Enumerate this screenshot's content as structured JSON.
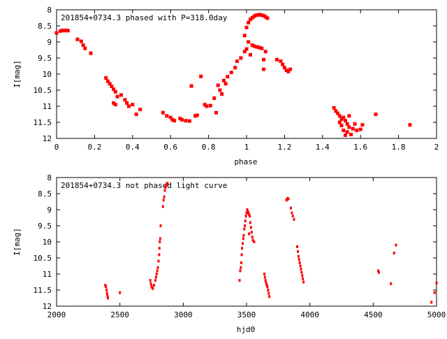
{
  "chart_data": [
    {
      "type": "scatter",
      "title": "201854+0734.3 phased with P=318.0day",
      "xlabel": "phase",
      "ylabel": "I[mag]",
      "xlim": [
        0,
        2
      ],
      "ylim": [
        12,
        8
      ],
      "y_inverted": true,
      "grid": false,
      "xticks": [
        "0",
        "0.2",
        "0.4",
        "0.6",
        "0.8",
        "1",
        "1.2",
        "1.4",
        "1.6",
        "1.8",
        "2"
      ],
      "yticks": [
        "8",
        "8.5",
        "9",
        "9.5",
        "10",
        "10.5",
        "11",
        "11.5",
        "12"
      ],
      "marker_color": "#ff0000",
      "points": [
        [
          0.0,
          8.72
        ],
        [
          0.02,
          8.66
        ],
        [
          0.03,
          8.64
        ],
        [
          0.04,
          8.65
        ],
        [
          0.05,
          8.64
        ],
        [
          0.06,
          8.65
        ],
        [
          0.11,
          8.92
        ],
        [
          0.13,
          8.98
        ],
        [
          0.14,
          9.1
        ],
        [
          0.15,
          9.2
        ],
        [
          0.18,
          9.35
        ],
        [
          0.26,
          10.12
        ],
        [
          0.27,
          10.22
        ],
        [
          0.28,
          10.3
        ],
        [
          0.29,
          10.38
        ],
        [
          0.3,
          10.47
        ],
        [
          0.31,
          10.55
        ],
        [
          0.32,
          10.7
        ],
        [
          0.3,
          10.9
        ],
        [
          0.31,
          10.95
        ],
        [
          0.34,
          10.65
        ],
        [
          0.36,
          10.8
        ],
        [
          0.37,
          10.9
        ],
        [
          0.38,
          11.0
        ],
        [
          0.4,
          10.95
        ],
        [
          0.42,
          11.25
        ],
        [
          0.44,
          11.1
        ],
        [
          0.56,
          11.2
        ],
        [
          0.58,
          11.3
        ],
        [
          0.6,
          11.35
        ],
        [
          0.61,
          11.42
        ],
        [
          0.62,
          11.45
        ],
        [
          0.65,
          11.38
        ],
        [
          0.66,
          11.42
        ],
        [
          0.68,
          11.45
        ],
        [
          0.7,
          11.46
        ],
        [
          0.71,
          10.37
        ],
        [
          0.73,
          11.3
        ],
        [
          0.74,
          11.28
        ],
        [
          0.76,
          10.07
        ],
        [
          0.78,
          10.95
        ],
        [
          0.79,
          11.0
        ],
        [
          0.81,
          10.98
        ],
        [
          0.83,
          10.75
        ],
        [
          0.84,
          11.2
        ],
        [
          0.85,
          10.35
        ],
        [
          0.86,
          10.5
        ],
        [
          0.87,
          10.62
        ],
        [
          0.88,
          10.2
        ],
        [
          0.89,
          10.3
        ],
        [
          0.9,
          10.08
        ],
        [
          0.92,
          9.95
        ],
        [
          0.94,
          9.8
        ],
        [
          0.95,
          9.6
        ],
        [
          0.97,
          9.5
        ],
        [
          0.99,
          9.3
        ],
        [
          1.0,
          9.22
        ],
        [
          1.01,
          9.0
        ],
        [
          1.02,
          9.4
        ],
        [
          1.03,
          9.1
        ],
        [
          1.04,
          9.13
        ],
        [
          1.05,
          9.15
        ],
        [
          1.06,
          9.16
        ],
        [
          1.07,
          9.18
        ],
        [
          1.08,
          9.2
        ],
        [
          1.09,
          9.85
        ],
        [
          1.09,
          9.55
        ],
        [
          1.1,
          9.3
        ],
        [
          0.99,
          8.8
        ],
        [
          1.0,
          8.55
        ],
        [
          1.01,
          8.4
        ],
        [
          1.02,
          8.3
        ],
        [
          1.03,
          8.25
        ],
        [
          1.04,
          8.2
        ],
        [
          1.05,
          8.17
        ],
        [
          1.06,
          8.16
        ],
        [
          1.07,
          8.15
        ],
        [
          1.08,
          8.17
        ],
        [
          1.09,
          8.18
        ],
        [
          1.1,
          8.22
        ],
        [
          1.11,
          8.26
        ],
        [
          1.16,
          9.55
        ],
        [
          1.18,
          9.6
        ],
        [
          1.19,
          9.7
        ],
        [
          1.2,
          9.8
        ],
        [
          1.21,
          9.88
        ],
        [
          1.22,
          9.92
        ],
        [
          1.23,
          9.85
        ],
        [
          1.46,
          11.05
        ],
        [
          1.47,
          11.15
        ],
        [
          1.48,
          11.22
        ],
        [
          1.49,
          11.3
        ],
        [
          1.49,
          11.5
        ],
        [
          1.5,
          11.4
        ],
        [
          1.5,
          11.6
        ],
        [
          1.51,
          11.35
        ],
        [
          1.51,
          11.75
        ],
        [
          1.52,
          11.45
        ],
        [
          1.52,
          11.9
        ],
        [
          1.53,
          11.55
        ],
        [
          1.53,
          11.8
        ],
        [
          1.54,
          11.3
        ],
        [
          1.54,
          11.65
        ],
        [
          1.55,
          11.88
        ],
        [
          1.56,
          11.7
        ],
        [
          1.57,
          11.55
        ],
        [
          1.58,
          11.75
        ],
        [
          1.6,
          11.72
        ],
        [
          1.61,
          11.58
        ],
        [
          1.68,
          11.25
        ],
        [
          1.86,
          11.58
        ]
      ]
    },
    {
      "type": "scatter",
      "title": "201854+0734.3 not phased light curve",
      "xlabel": "hjd0",
      "ylabel": "I[mag]",
      "xlim": [
        2000,
        5000
      ],
      "ylim": [
        12,
        8
      ],
      "y_inverted": true,
      "grid": false,
      "xticks": [
        "2000",
        "2500",
        "3000",
        "3500",
        "4000",
        "4500",
        "5000"
      ],
      "yticks": [
        "8",
        "8.5",
        "9",
        "9.5",
        "10",
        "10.5",
        "11",
        "11.5",
        "12"
      ],
      "marker_color": "#ff0000",
      "points": [
        [
          2385,
          11.35
        ],
        [
          2390,
          11.4
        ],
        [
          2395,
          11.5
        ],
        [
          2398,
          11.6
        ],
        [
          2402,
          11.68
        ],
        [
          2405,
          11.75
        ],
        [
          2500,
          11.58
        ],
        [
          2740,
          11.2
        ],
        [
          2745,
          11.3
        ],
        [
          2750,
          11.38
        ],
        [
          2755,
          11.42
        ],
        [
          2760,
          11.45
        ],
        [
          2770,
          11.35
        ],
        [
          2780,
          11.2
        ],
        [
          2785,
          11.1
        ],
        [
          2790,
          11.0
        ],
        [
          2795,
          10.9
        ],
        [
          2800,
          10.8
        ],
        [
          2805,
          10.6
        ],
        [
          2810,
          10.4
        ],
        [
          2812,
          10.2
        ],
        [
          2815,
          10.0
        ],
        [
          2818,
          9.9
        ],
        [
          2822,
          9.5
        ],
        [
          2840,
          8.9
        ],
        [
          2845,
          8.7
        ],
        [
          2850,
          8.6
        ],
        [
          2855,
          8.4
        ],
        [
          2860,
          8.3
        ],
        [
          2865,
          8.25
        ],
        [
          2870,
          8.2
        ],
        [
          2875,
          8.18
        ],
        [
          3445,
          11.2
        ],
        [
          3450,
          10.9
        ],
        [
          3455,
          10.8
        ],
        [
          3458,
          10.65
        ],
        [
          3462,
          10.4
        ],
        [
          3465,
          10.2
        ],
        [
          3470,
          10.05
        ],
        [
          3474,
          9.9
        ],
        [
          3478,
          9.8
        ],
        [
          3482,
          9.6
        ],
        [
          3486,
          9.5
        ],
        [
          3490,
          9.35
        ],
        [
          3495,
          9.2
        ],
        [
          3500,
          9.1
        ],
        [
          3505,
          9.0
        ],
        [
          3510,
          9.05
        ],
        [
          3515,
          9.1
        ],
        [
          3520,
          9.15
        ],
        [
          3525,
          9.2
        ],
        [
          3530,
          9.4
        ],
        [
          3535,
          9.55
        ],
        [
          3540,
          9.7
        ],
        [
          3545,
          9.85
        ],
        [
          3550,
          9.95
        ],
        [
          3520,
          9.75
        ],
        [
          3560,
          10.0
        ],
        [
          3640,
          11.0
        ],
        [
          3645,
          11.1
        ],
        [
          3650,
          11.2
        ],
        [
          3655,
          11.28
        ],
        [
          3660,
          11.35
        ],
        [
          3665,
          11.4
        ],
        [
          3670,
          11.5
        ],
        [
          3675,
          11.6
        ],
        [
          3680,
          11.7
        ],
        [
          3815,
          8.7
        ],
        [
          3820,
          8.68
        ],
        [
          3825,
          8.65
        ],
        [
          3830,
          8.66
        ],
        [
          3850,
          8.95
        ],
        [
          3858,
          9.1
        ],
        [
          3865,
          9.2
        ],
        [
          3875,
          9.3
        ],
        [
          3900,
          10.15
        ],
        [
          3905,
          10.3
        ],
        [
          3910,
          10.45
        ],
        [
          3915,
          10.55
        ],
        [
          3920,
          10.65
        ],
        [
          3925,
          10.75
        ],
        [
          3930,
          10.85
        ],
        [
          3935,
          10.95
        ],
        [
          3940,
          11.05
        ],
        [
          3945,
          11.15
        ],
        [
          3950,
          11.25
        ],
        [
          4540,
          10.9
        ],
        [
          4545,
          10.95
        ],
        [
          4640,
          11.3
        ],
        [
          4665,
          10.35
        ],
        [
          4680,
          10.1
        ],
        [
          4960,
          11.88
        ],
        [
          4985,
          11.58
        ],
        [
          5000,
          11.28
        ]
      ]
    }
  ]
}
